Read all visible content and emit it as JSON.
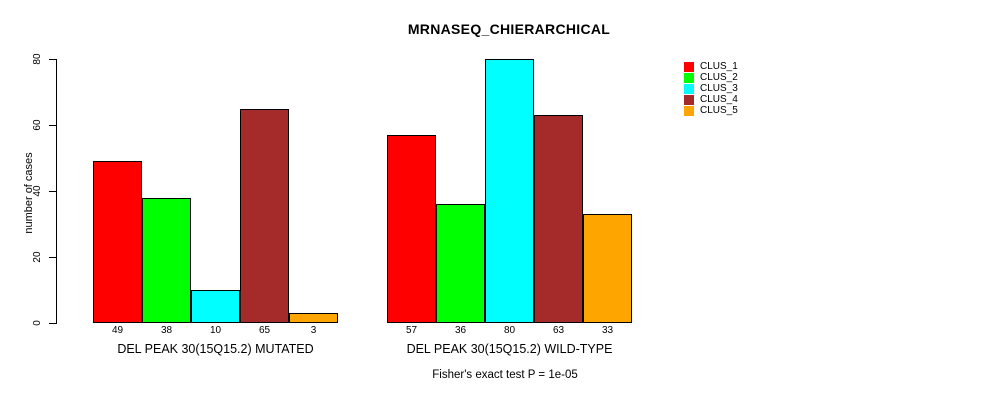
{
  "title": "MRNASEQ_CHIERARCHICAL",
  "chart_data": {
    "type": "bar",
    "title": "MRNASEQ_CHIERARCHICAL",
    "ylabel": "number of cases",
    "xlabel": "",
    "ylim": [
      0,
      80
    ],
    "yticks": [
      0,
      20,
      40,
      60,
      80
    ],
    "grid": false,
    "legend_position": "top-right",
    "categories": [
      "DEL PEAK 30(15Q15.2) MUTATED",
      "DEL PEAK 30(15Q15.2) WILD-TYPE"
    ],
    "series": [
      {
        "name": "CLUS_1",
        "color": "#FF0000",
        "values": [
          49,
          57
        ]
      },
      {
        "name": "CLUS_2",
        "color": "#00FF00",
        "values": [
          38,
          36
        ]
      },
      {
        "name": "CLUS_3",
        "color": "#00FFFF",
        "values": [
          10,
          80
        ]
      },
      {
        "name": "CLUS_4",
        "color": "#A52A2A",
        "values": [
          65,
          63
        ]
      },
      {
        "name": "CLUS_5",
        "color": "#FFA500",
        "values": [
          3,
          33
        ]
      }
    ],
    "bar_value_labels": [
      [
        49,
        38,
        10,
        65,
        3
      ],
      [
        57,
        36,
        80,
        63,
        33
      ]
    ],
    "footnote": "Fisher's exact test P = 1e-05"
  }
}
